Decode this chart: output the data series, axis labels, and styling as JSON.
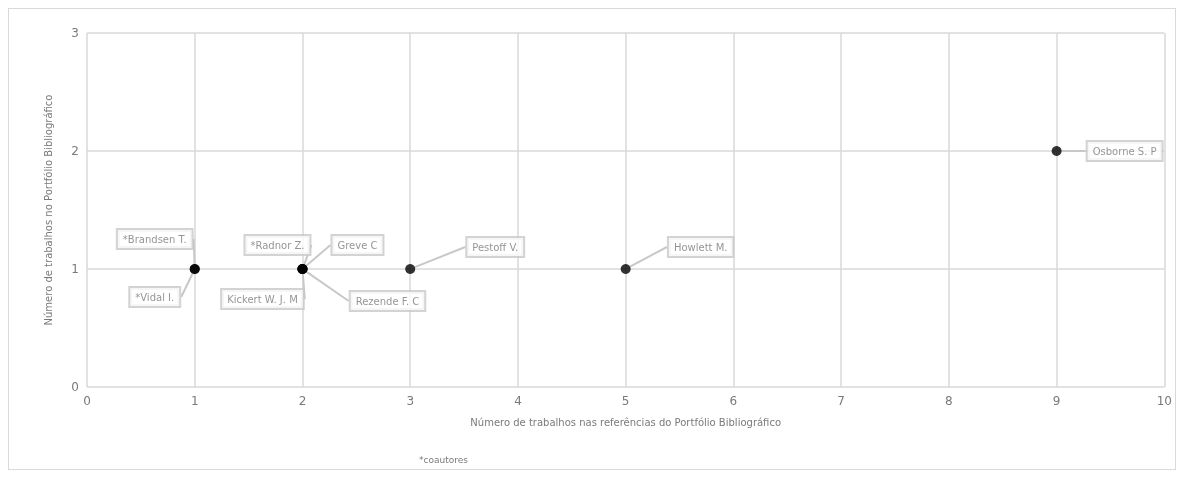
{
  "chart_data": {
    "type": "scatter",
    "xlabel": "Número de trabalhos nas referências do Portfólio Bibliográfico",
    "ylabel": "Número de trabalhos no Portfólio Bibliográfico",
    "annotations": [
      "*coautores"
    ],
    "x": [
      1,
      1,
      2,
      2,
      2,
      2,
      3,
      5,
      9
    ],
    "values": [
      1,
      1,
      1,
      1,
      1,
      1,
      1,
      1,
      2
    ],
    "value_labels": [
      "*Brandsen T.",
      "*Vidal I.",
      "*Radnor Z.",
      "Greve C",
      "Kickert W. J. M",
      "Rezende F. C",
      "Pestoff V.",
      "Howlett M.",
      "Osborne S. P"
    ],
    "color": "#000000",
    "marker": "circle",
    "xlim": [
      0,
      10
    ],
    "xticks": [
      0,
      1,
      2,
      3,
      4,
      5,
      6,
      7,
      8,
      9,
      10
    ],
    "ylim": [
      0,
      3
    ],
    "yticks": [
      0,
      1,
      2,
      3
    ],
    "grid": true
  }
}
